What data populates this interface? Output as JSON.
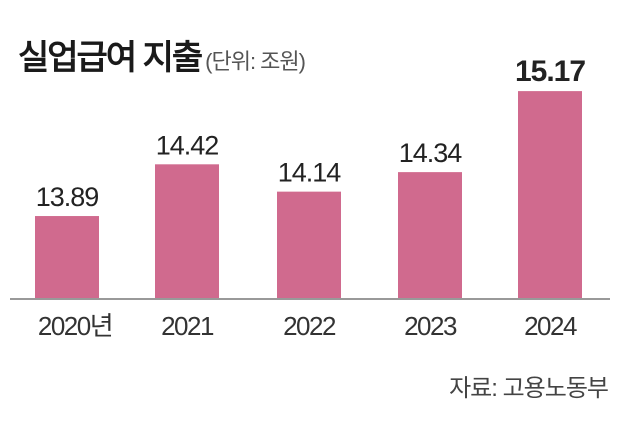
{
  "chart_data": {
    "type": "bar",
    "title": "실업급여 지출",
    "unit_label": "(단위: 조원)",
    "categories": [
      "2020년",
      "2021",
      "2022",
      "2023",
      "2024"
    ],
    "values": [
      13.89,
      14.42,
      14.14,
      14.34,
      15.17
    ],
    "data_labels": [
      "13.89",
      "14.42",
      "14.14",
      "14.34",
      "15.17"
    ],
    "ylim": [
      13.04,
      15.6
    ],
    "grid": false,
    "bar_color": "#d06a8e",
    "source": "자료: 고용노동부"
  }
}
